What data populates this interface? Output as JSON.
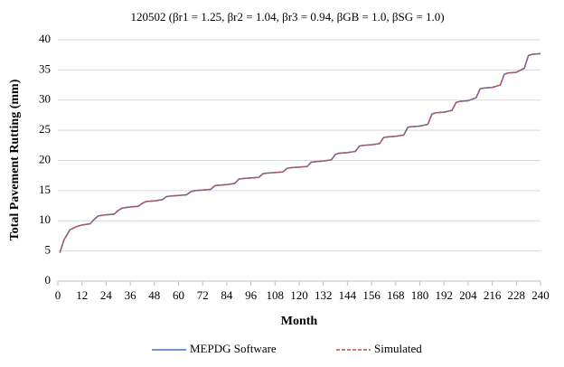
{
  "chart_data": {
    "type": "line",
    "title": "120502 (βr1 = 1.25, βr2 = 1.04, βr3 = 0.94, βGB = 1.0, βSG = 1.0)",
    "x_label": "Month",
    "y_label": "Total Pavement Rutting (mm)",
    "x": [
      1,
      3,
      6,
      9,
      12,
      16,
      18,
      20,
      24,
      28,
      30,
      32,
      36,
      40,
      42,
      44,
      48,
      52,
      54,
      56,
      60,
      64,
      66,
      68,
      72,
      76,
      78,
      80,
      84,
      88,
      90,
      92,
      96,
      100,
      102,
      104,
      108,
      112,
      114,
      116,
      120,
      124,
      126,
      128,
      132,
      136,
      138,
      140,
      144,
      148,
      150,
      152,
      156,
      160,
      162,
      164,
      168,
      172,
      174,
      176,
      180,
      184,
      186,
      188,
      192,
      196,
      198,
      200,
      204,
      208,
      210,
      212,
      216,
      220,
      222,
      224,
      228,
      232,
      234,
      236,
      240
    ],
    "series": [
      {
        "name": "MEPDG Software",
        "color": "#4472c4",
        "dash": false,
        "values": [
          4.7,
          6.8,
          8.5,
          9.0,
          9.3,
          9.5,
          10.2,
          10.8,
          11.0,
          11.1,
          11.7,
          12.1,
          12.3,
          12.4,
          12.9,
          13.2,
          13.3,
          13.5,
          14.0,
          14.1,
          14.2,
          14.3,
          14.8,
          15.0,
          15.1,
          15.2,
          15.8,
          15.9,
          16.0,
          16.2,
          16.9,
          17.0,
          17.1,
          17.2,
          17.8,
          17.9,
          18.0,
          18.1,
          18.7,
          18.8,
          18.9,
          19.0,
          19.7,
          19.8,
          19.9,
          20.1,
          21.0,
          21.2,
          21.3,
          21.5,
          22.4,
          22.5,
          22.6,
          22.8,
          23.8,
          23.9,
          24.0,
          24.2,
          25.5,
          25.6,
          25.7,
          26.0,
          27.7,
          27.9,
          28.0,
          28.3,
          29.6,
          29.8,
          29.9,
          30.4,
          31.9,
          32.0,
          32.1,
          32.5,
          34.3,
          34.5,
          34.6,
          35.3,
          37.4,
          37.6,
          37.7
        ]
      },
      {
        "name": "Simulated",
        "color": "#c0504d",
        "dash": true,
        "values": [
          4.7,
          6.8,
          8.5,
          9.0,
          9.3,
          9.5,
          10.2,
          10.8,
          11.0,
          11.1,
          11.7,
          12.1,
          12.3,
          12.4,
          12.9,
          13.2,
          13.3,
          13.5,
          14.0,
          14.1,
          14.2,
          14.3,
          14.8,
          15.0,
          15.1,
          15.2,
          15.8,
          15.9,
          16.0,
          16.2,
          16.9,
          17.0,
          17.1,
          17.2,
          17.8,
          17.9,
          18.0,
          18.1,
          18.7,
          18.8,
          18.9,
          19.0,
          19.7,
          19.8,
          19.9,
          20.1,
          21.0,
          21.2,
          21.3,
          21.5,
          22.4,
          22.5,
          22.6,
          22.8,
          23.8,
          23.9,
          24.0,
          24.2,
          25.5,
          25.6,
          25.7,
          26.0,
          27.7,
          27.9,
          28.0,
          28.3,
          29.6,
          29.8,
          29.9,
          30.4,
          31.9,
          32.0,
          32.1,
          32.5,
          34.3,
          34.5,
          34.6,
          35.3,
          37.4,
          37.6,
          37.7
        ]
      }
    ],
    "xlim": [
      0,
      240
    ],
    "xticks": [
      0,
      12,
      24,
      36,
      48,
      60,
      72,
      84,
      96,
      108,
      120,
      132,
      144,
      156,
      168,
      180,
      192,
      204,
      216,
      228,
      240
    ],
    "ylim": [
      0,
      40
    ],
    "yticks": [
      0,
      5,
      10,
      15,
      20,
      25,
      30,
      35,
      40
    ],
    "grid": true,
    "legend": "bottom"
  }
}
